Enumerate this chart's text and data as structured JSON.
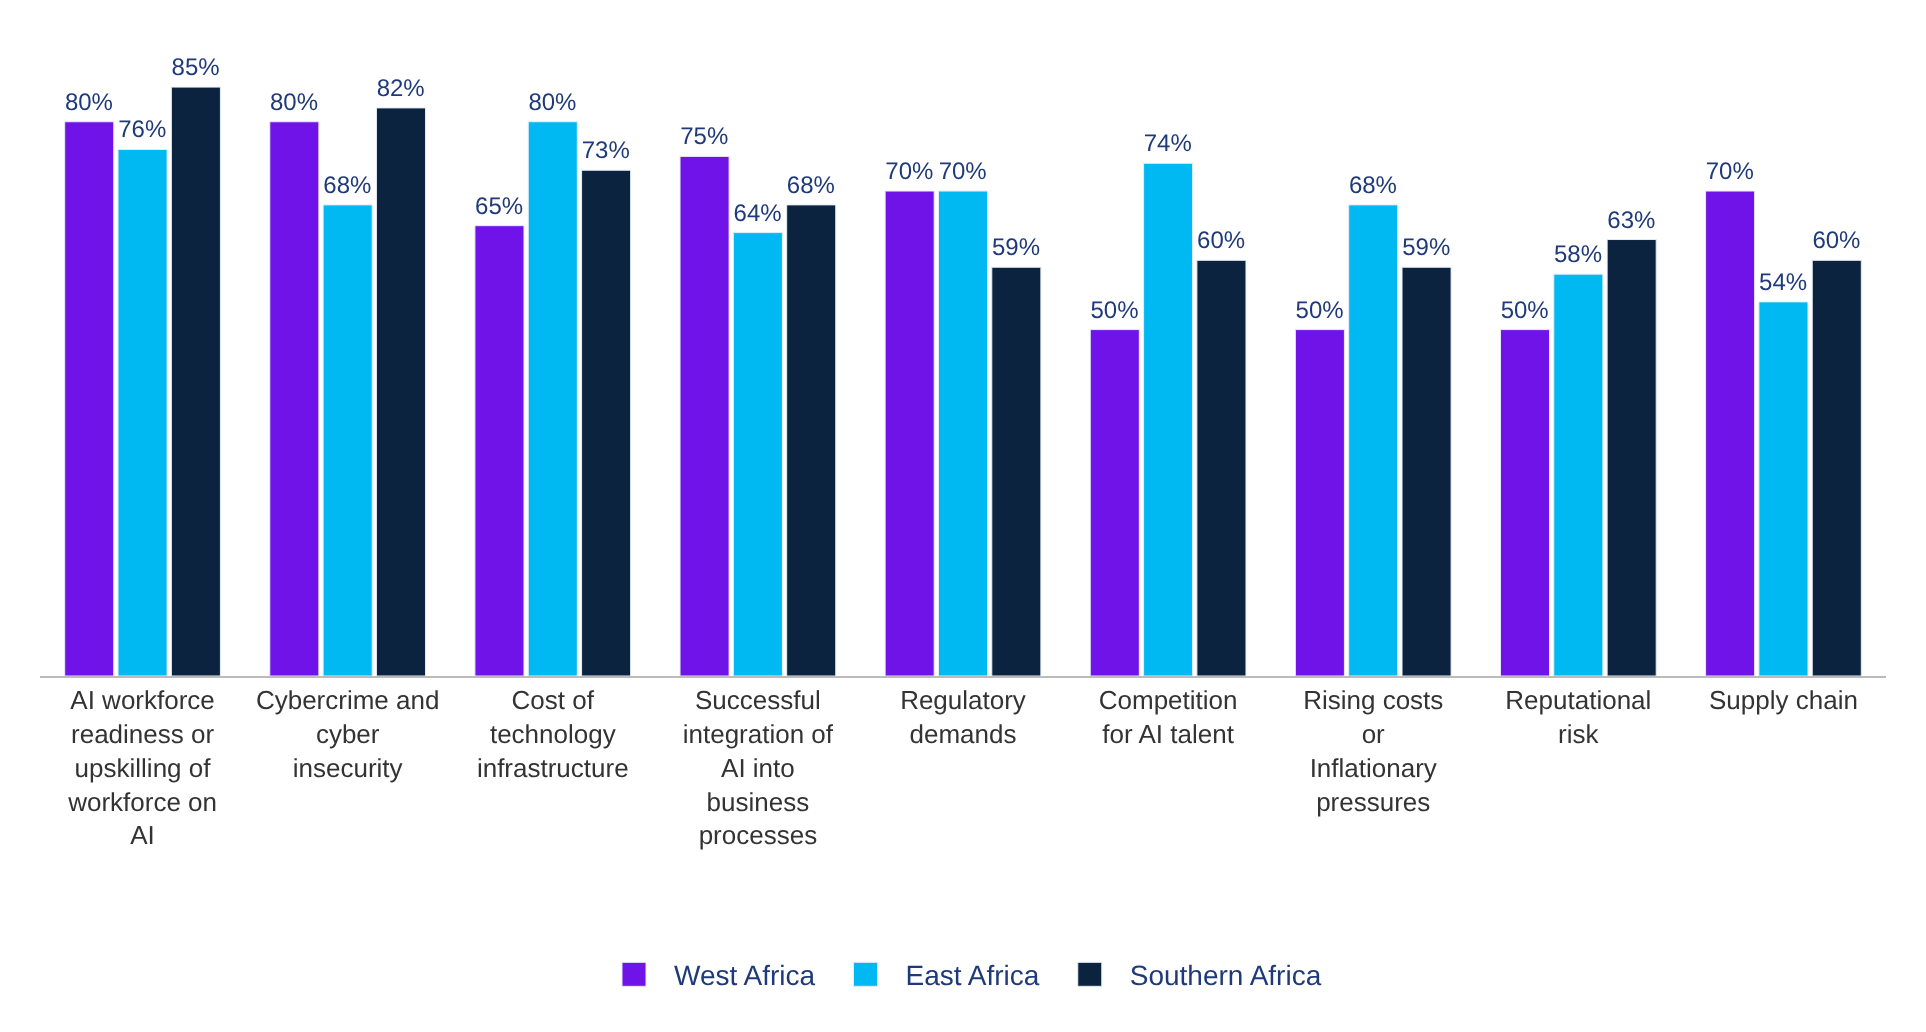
{
  "chart_data": {
    "type": "bar",
    "categories": [
      "AI workforce readiness or upskilling of workforce on AI",
      "Cybercrime and cyber insecurity",
      "Cost of technology infrastructure",
      "Successful integration of AI into business processes",
      "Regulatory demands",
      "Competition for AI talent",
      "Rising costs or Inflationary pressures",
      "Reputational risk",
      "Supply chain"
    ],
    "series": [
      {
        "name": "West Africa",
        "color": "#7013e8",
        "values": [
          80,
          80,
          65,
          75,
          70,
          50,
          50,
          50,
          70
        ],
        "value_labels": [
          "80%",
          "80%",
          "65%",
          "75%",
          "70%",
          "50%",
          "50%",
          "50%",
          "70%"
        ]
      },
      {
        "name": "East Africa",
        "color": "#00b9f2",
        "values": [
          76,
          68,
          80,
          64,
          70,
          74,
          68,
          58,
          54
        ],
        "value_labels": [
          "76%",
          "68%",
          "80%",
          "64%",
          "70%",
          "74%",
          "68%",
          "58%",
          "54%"
        ]
      },
      {
        "name": "Southern Africa",
        "color": "#0c2340",
        "values": [
          85,
          82,
          73,
          68,
          59,
          60,
          59,
          63,
          60
        ],
        "value_labels": [
          "85%",
          "82%",
          "73%",
          "68%",
          "59%",
          "60%",
          "59%",
          "63%",
          "60%"
        ]
      }
    ],
    "legend": "bottom"
  }
}
